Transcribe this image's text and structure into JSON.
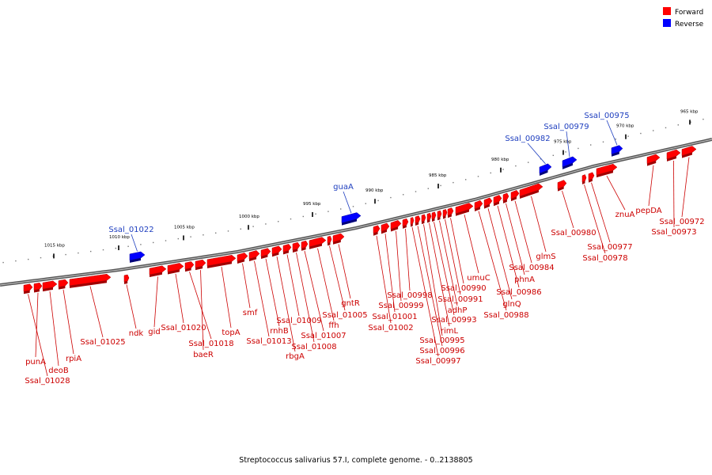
{
  "legend": [
    {
      "label": "Forward",
      "color": "#ff0000"
    },
    {
      "label": "Reverse",
      "color": "#0000ff"
    }
  ],
  "caption": "Streptococcus salivarius 57.I, complete genome. - 0..2138805",
  "colors": {
    "forward": "#ff0000",
    "reverse": "#0000ff",
    "backbone": "#7a7a7a",
    "label_fwd": "#cc0000",
    "label_rev": "#1f3fbf"
  },
  "chart_data": {
    "type": "genome-map",
    "strands": [
      "Forward",
      "Reverse"
    ],
    "scale_ticks": [
      {
        "label": "965 kbp",
        "kbp": 965
      },
      {
        "label": "970 kbp",
        "kbp": 970
      },
      {
        "label": "975 kbp",
        "kbp": 975
      },
      {
        "label": "980 kbp",
        "kbp": 980
      },
      {
        "label": "985 kbp",
        "kbp": 985
      },
      {
        "label": "990 kbp",
        "kbp": 990
      },
      {
        "label": "995 kbp",
        "kbp": 995
      },
      {
        "label": "1000 kbp",
        "kbp": 1000
      },
      {
        "label": "1005 kbp",
        "kbp": 1005
      },
      {
        "label": "1010 kbp",
        "kbp": 1010
      },
      {
        "label": "1015 kbp",
        "kbp": 1015
      }
    ],
    "reverse_genes": [
      "Ssal_00975",
      "Ssal_00979",
      "Ssal_00982",
      "guaA",
      "Ssal_01022"
    ],
    "forward_genes": [
      "Ssal_00972",
      "Ssal_00973",
      "pepDA",
      "znuA",
      "Ssal_00977",
      "Ssal_00978",
      "Ssal_00980",
      "glmS",
      "Ssal_00984",
      "phnA",
      "Ssal_00986",
      "glnQ",
      "Ssal_00988",
      "umuC",
      "Ssal_00990",
      "Ssal_00991",
      "adhP",
      "Ssal_00993",
      "rimL",
      "Ssal_00995",
      "Ssal_00996",
      "Ssal_00997",
      "Ssal_00998",
      "Ssal_00999",
      "Ssal_01001",
      "Ssal_01002",
      "gntR",
      "Ssal_01005",
      "ffh",
      "Ssal_01007",
      "Ssal_01008",
      "Ssal_01009",
      "rbgA",
      "rnhB",
      "Ssal_01013",
      "smf",
      "topA",
      "baeR",
      "Ssal_01018",
      "Ssal_01020",
      "gid",
      "ndk",
      "Ssal_01025",
      "rpiA",
      "punA",
      "deoB",
      "Ssal_01028"
    ]
  }
}
